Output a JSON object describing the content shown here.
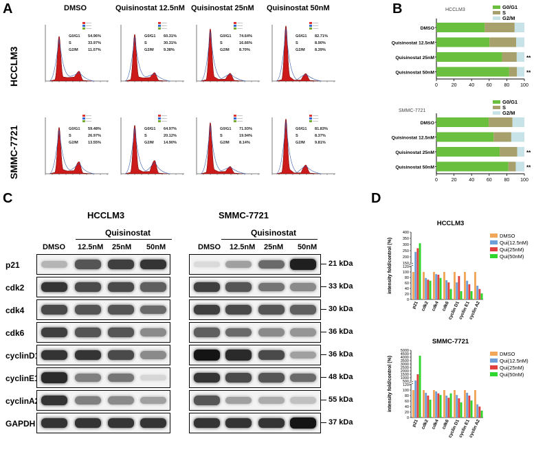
{
  "panels": {
    "a": "A",
    "b": "B",
    "c": "C",
    "d": "D"
  },
  "histograms": {
    "columns": [
      "DMSO",
      "Quisinostat 12.5nM",
      "Quisinostat 25nM",
      "Quisinostat 50nM"
    ],
    "rows": [
      {
        "cell_line": "HCCLM3",
        "stats": [
          {
            "g0g1": "54.96%",
            "s": "33.97%",
            "g2m": "11.07%"
          },
          {
            "g0g1": "60.31%",
            "s": "30.31%",
            "g2m": "9.38%"
          },
          {
            "g0g1": "74.64%",
            "s": "16.66%",
            "g2m": "8.70%"
          },
          {
            "g0g1": "82.71%",
            "s": "8.90%",
            "g2m": "8.39%"
          }
        ]
      },
      {
        "cell_line": "SMMC-7721",
        "stats": [
          {
            "g0g1": "59.48%",
            "s": "26.97%",
            "g2m": "13.55%"
          },
          {
            "g0g1": "64.97%",
            "s": "20.12%",
            "g2m": "14.90%"
          },
          {
            "g0g1": "71.93%",
            "s": "19.94%",
            "g2m": "8.14%"
          },
          {
            "g0g1": "81.83%",
            "s": "8.37%",
            "g2m": "9.81%"
          }
        ]
      }
    ],
    "stat_labels": {
      "g0g1": "G0/G1",
      "s": "S",
      "g2m": "G2/M"
    }
  },
  "blots": {
    "left_title": "HCCLM3",
    "right_title": "SMMC-7721",
    "treatment": "Quisinostat",
    "lanes": [
      "DMSO",
      "12.5nM",
      "25nM",
      "50nM"
    ],
    "proteins": [
      "p21",
      "cdk2",
      "cdk4",
      "cdk6",
      "cyclinD1",
      "cyclinE1",
      "cyclinA2",
      "GAPDH"
    ],
    "sizes": [
      "21 kDa",
      "33 kDa",
      "30 kDa",
      "36 kDa",
      "36 kDa",
      "48 kDa",
      "55 kDa",
      "37 kDa"
    ]
  },
  "chart_data": [
    {
      "type": "bar",
      "orientation": "horizontal-stacked",
      "title": "HCCLM3",
      "categories": [
        "DMSO",
        "Quisinostat 12.5nM",
        "Quisinostat 25nM",
        "Quisinostat 50nM"
      ],
      "series": [
        {
          "name": "G0/G1",
          "values": [
            54.96,
            60.31,
            74.64,
            82.71
          ]
        },
        {
          "name": "S",
          "values": [
            33.97,
            30.31,
            16.66,
            8.9
          ]
        },
        {
          "name": "G2/M",
          "values": [
            11.07,
            9.38,
            8.7,
            8.39
          ]
        }
      ],
      "significance": [
        "",
        "",
        "**",
        "**"
      ],
      "xlim": [
        0,
        100
      ],
      "xticks": [
        "0",
        "20",
        "40",
        "60",
        "80",
        "100"
      ],
      "legend": "top-right"
    },
    {
      "type": "bar",
      "orientation": "horizontal-stacked",
      "title": "SMMC-7721",
      "categories": [
        "DMSO",
        "Quisinostat 12.5nM",
        "Quisinostat 25nM",
        "Quisinostat 50nM"
      ],
      "series": [
        {
          "name": "G0/G1",
          "values": [
            59.48,
            64.97,
            71.93,
            81.83
          ]
        },
        {
          "name": "S",
          "values": [
            26.97,
            20.12,
            19.94,
            8.37
          ]
        },
        {
          "name": "G2/M",
          "values": [
            13.55,
            14.9,
            8.14,
            9.81
          ]
        }
      ],
      "significance": [
        "",
        "",
        "**",
        "**"
      ],
      "xlim": [
        0,
        100
      ],
      "xticks": [
        "0",
        "20",
        "40",
        "60",
        "80",
        "100"
      ],
      "legend": "top-right"
    },
    {
      "type": "bar",
      "title": "HCCLM3",
      "ylabel": "intensity fold/control (%)",
      "categories": [
        "p21",
        "cdk2",
        "cdk4",
        "cdk6",
        "cyclin D1",
        "cyclin E1",
        "cyclin A2"
      ],
      "series": [
        {
          "name": "DMSO",
          "values": [
            100,
            100,
            100,
            100,
            100,
            100,
            100
          ]
        },
        {
          "name": "Qui(12.5nM)",
          "values": [
            240,
            78,
            92,
            70,
            62,
            68,
            50
          ]
        },
        {
          "name": "Qui(25nM)",
          "values": [
            270,
            72,
            90,
            62,
            85,
            55,
            38
          ]
        },
        {
          "name": "Qui(50nM)",
          "values": [
            310,
            68,
            78,
            38,
            30,
            30,
            22
          ]
        }
      ],
      "yticks": [
        "0",
        "20",
        "40",
        "60",
        "80",
        "100",
        "120",
        "150",
        "200",
        "250",
        "300",
        "350",
        "400"
      ],
      "ylim": [
        0,
        400
      ],
      "legend": "right"
    },
    {
      "type": "bar",
      "title": "SMMC-7721",
      "ylabel": "intensity fold/control (%)",
      "categories": [
        "p21",
        "cdk2",
        "cdk4",
        "cdk6",
        "cyclin D1",
        "cyclin E1",
        "cyclin A2"
      ],
      "series": [
        {
          "name": "DMSO",
          "values": [
            100,
            100,
            100,
            100,
            100,
            100,
            100
          ]
        },
        {
          "name": "Qui(12.5nM)",
          "values": [
            600,
            90,
            95,
            80,
            82,
            90,
            48
          ]
        },
        {
          "name": "Qui(25nM)",
          "values": [
            1500,
            80,
            88,
            72,
            70,
            80,
            40
          ]
        },
        {
          "name": "Qui(50nM)",
          "values": [
            4200,
            65,
            82,
            88,
            55,
            62,
            25
          ]
        }
      ],
      "yticks": [
        "0",
        "20",
        "40",
        "60",
        "80",
        "100",
        "120",
        "500",
        "1000",
        "1500",
        "2000",
        "2500",
        "3000",
        "3500",
        "4000",
        "4500",
        "5000"
      ],
      "ylim": [
        0,
        5000
      ],
      "legend": "right"
    }
  ],
  "colors": {
    "g0g1": "#6abf3f",
    "s": "#a8a06c",
    "g2m": "#c7e3e8",
    "dmso": "#f2a65a",
    "q12": "#6f9fd8",
    "q25": "#e04040",
    "q50": "#2ed62e",
    "hist": "#cc1a1a"
  }
}
